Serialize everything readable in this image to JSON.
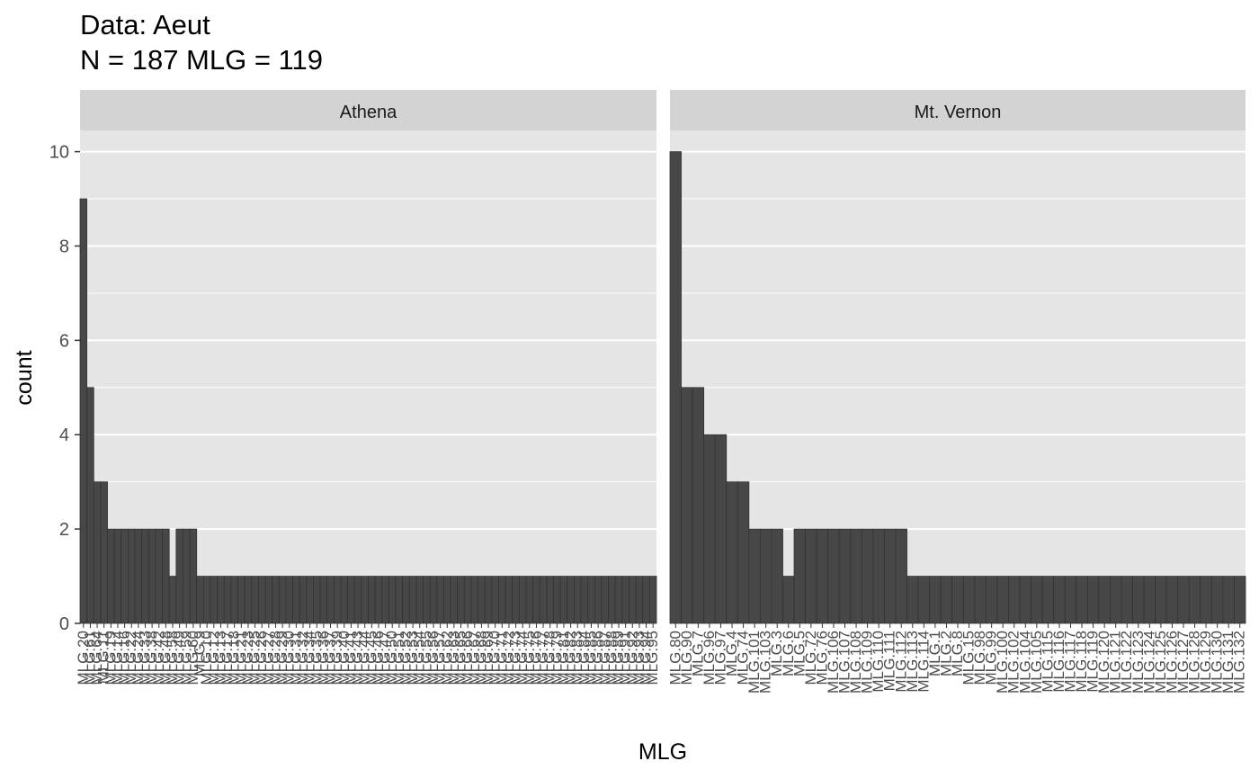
{
  "chart_data": {
    "type": "bar",
    "title": "Data: Aeut",
    "subtitle": "N = 187 MLG = 119",
    "xlabel": "MLG",
    "ylabel": "count",
    "ylim": [
      0,
      10
    ],
    "yticks": [
      0,
      2,
      4,
      6,
      8,
      10
    ],
    "grid": true,
    "panels": [
      {
        "name": "Athena",
        "categories": [
          "MLG.20",
          "MLG.61",
          "MLG.64",
          "MLG.11",
          "MLG.19",
          "MLG.14",
          "MLG.16",
          "MLG.22",
          "MLG.24",
          "MLG.33",
          "MLG.38",
          "MLG.42",
          "MLG.48",
          "MLG.58",
          "MLG.49",
          "MLG.59",
          "MLG.60",
          "MLG.9",
          "MLG.10",
          "MLG.12",
          "MLG.13",
          "MLG.17",
          "MLG.18",
          "MLG.21",
          "MLG.23",
          "MLG.25",
          "MLG.26",
          "MLG.27",
          "MLG.28",
          "MLG.29",
          "MLG.30",
          "MLG.31",
          "MLG.32",
          "MLG.34",
          "MLG.35",
          "MLG.36",
          "MLG.37",
          "MLG.39",
          "MLG.40",
          "MLG.41",
          "MLG.43",
          "MLG.44",
          "MLG.45",
          "MLG.46",
          "MLG.47",
          "MLG.50",
          "MLG.51",
          "MLG.52",
          "MLG.53",
          "MLG.54",
          "MLG.55",
          "MLG.56",
          "MLG.57",
          "MLG.62",
          "MLG.63",
          "MLG.65",
          "MLG.66",
          "MLG.67",
          "MLG.68",
          "MLG.69",
          "MLG.70",
          "MLG.71",
          "MLG.72",
          "MLG.73",
          "MLG.74",
          "MLG.75",
          "MLG.76",
          "MLG.77",
          "MLG.78",
          "MLG.79",
          "MLG.81",
          "MLG.82",
          "MLG.83",
          "MLG.84",
          "MLG.85",
          "MLG.86",
          "MLG.87",
          "MLG.88",
          "MLG.89",
          "MLG.91",
          "MLG.92",
          "MLG.93",
          "MLG.94",
          "MLG.95"
        ],
        "values": [
          9,
          5,
          3,
          3,
          2,
          2,
          2,
          2,
          2,
          2,
          2,
          2,
          2,
          1,
          2,
          2,
          2,
          1,
          1,
          1,
          1,
          1,
          1,
          1,
          1,
          1,
          1,
          1,
          1,
          1,
          1,
          1,
          1,
          1,
          1,
          1,
          1,
          1,
          1,
          1,
          1,
          1,
          1,
          1,
          1,
          1,
          1,
          1,
          1,
          1,
          1,
          1,
          1,
          1,
          1,
          1,
          1,
          1,
          1,
          1,
          1,
          1,
          1,
          1,
          1,
          1,
          1,
          1,
          1,
          1,
          1,
          1,
          1,
          1,
          1,
          1,
          1,
          1,
          1,
          1,
          1,
          1,
          1,
          1
        ]
      },
      {
        "name": "Mt. Vernon",
        "categories": [
          "MLG.80",
          "MLG.90",
          "MLG.7",
          "MLG.96",
          "MLG.97",
          "MLG.4",
          "MLG.74",
          "MLG.101",
          "MLG.103",
          "MLG.3",
          "MLG.6",
          "MLG.5",
          "MLG.72",
          "MLG.76",
          "MLG.106",
          "MLG.107",
          "MLG.108",
          "MLG.109",
          "MLG.110",
          "MLG.111",
          "MLG.112",
          "MLG.113",
          "MLG.114",
          "MLG.1",
          "MLG.2",
          "MLG.8",
          "MLG.15",
          "MLG.98",
          "MLG.99",
          "MLG.100",
          "MLG.102",
          "MLG.104",
          "MLG.105",
          "MLG.115",
          "MLG.116",
          "MLG.117",
          "MLG.118",
          "MLG.119",
          "MLG.120",
          "MLG.121",
          "MLG.122",
          "MLG.123",
          "MLG.124",
          "MLG.125",
          "MLG.126",
          "MLG.127",
          "MLG.128",
          "MLG.129",
          "MLG.130",
          "MLG.131",
          "MLG.132"
        ],
        "values": [
          10,
          5,
          5,
          4,
          4,
          3,
          3,
          2,
          2,
          2,
          1,
          2,
          2,
          2,
          2,
          2,
          2,
          2,
          2,
          2,
          2,
          1,
          1,
          1,
          1,
          1,
          1,
          1,
          1,
          1,
          1,
          1,
          1,
          1,
          1,
          1,
          1,
          1,
          1,
          1,
          1,
          1,
          1,
          1,
          1,
          1,
          1,
          1,
          1,
          1,
          1
        ]
      }
    ]
  },
  "colors": {
    "bar_fill": "#474747",
    "bar_stroke": "#333333",
    "panel_bg": "#e5e5e5",
    "grid": "#ffffff",
    "strip_bg": "#d3d3d3"
  }
}
